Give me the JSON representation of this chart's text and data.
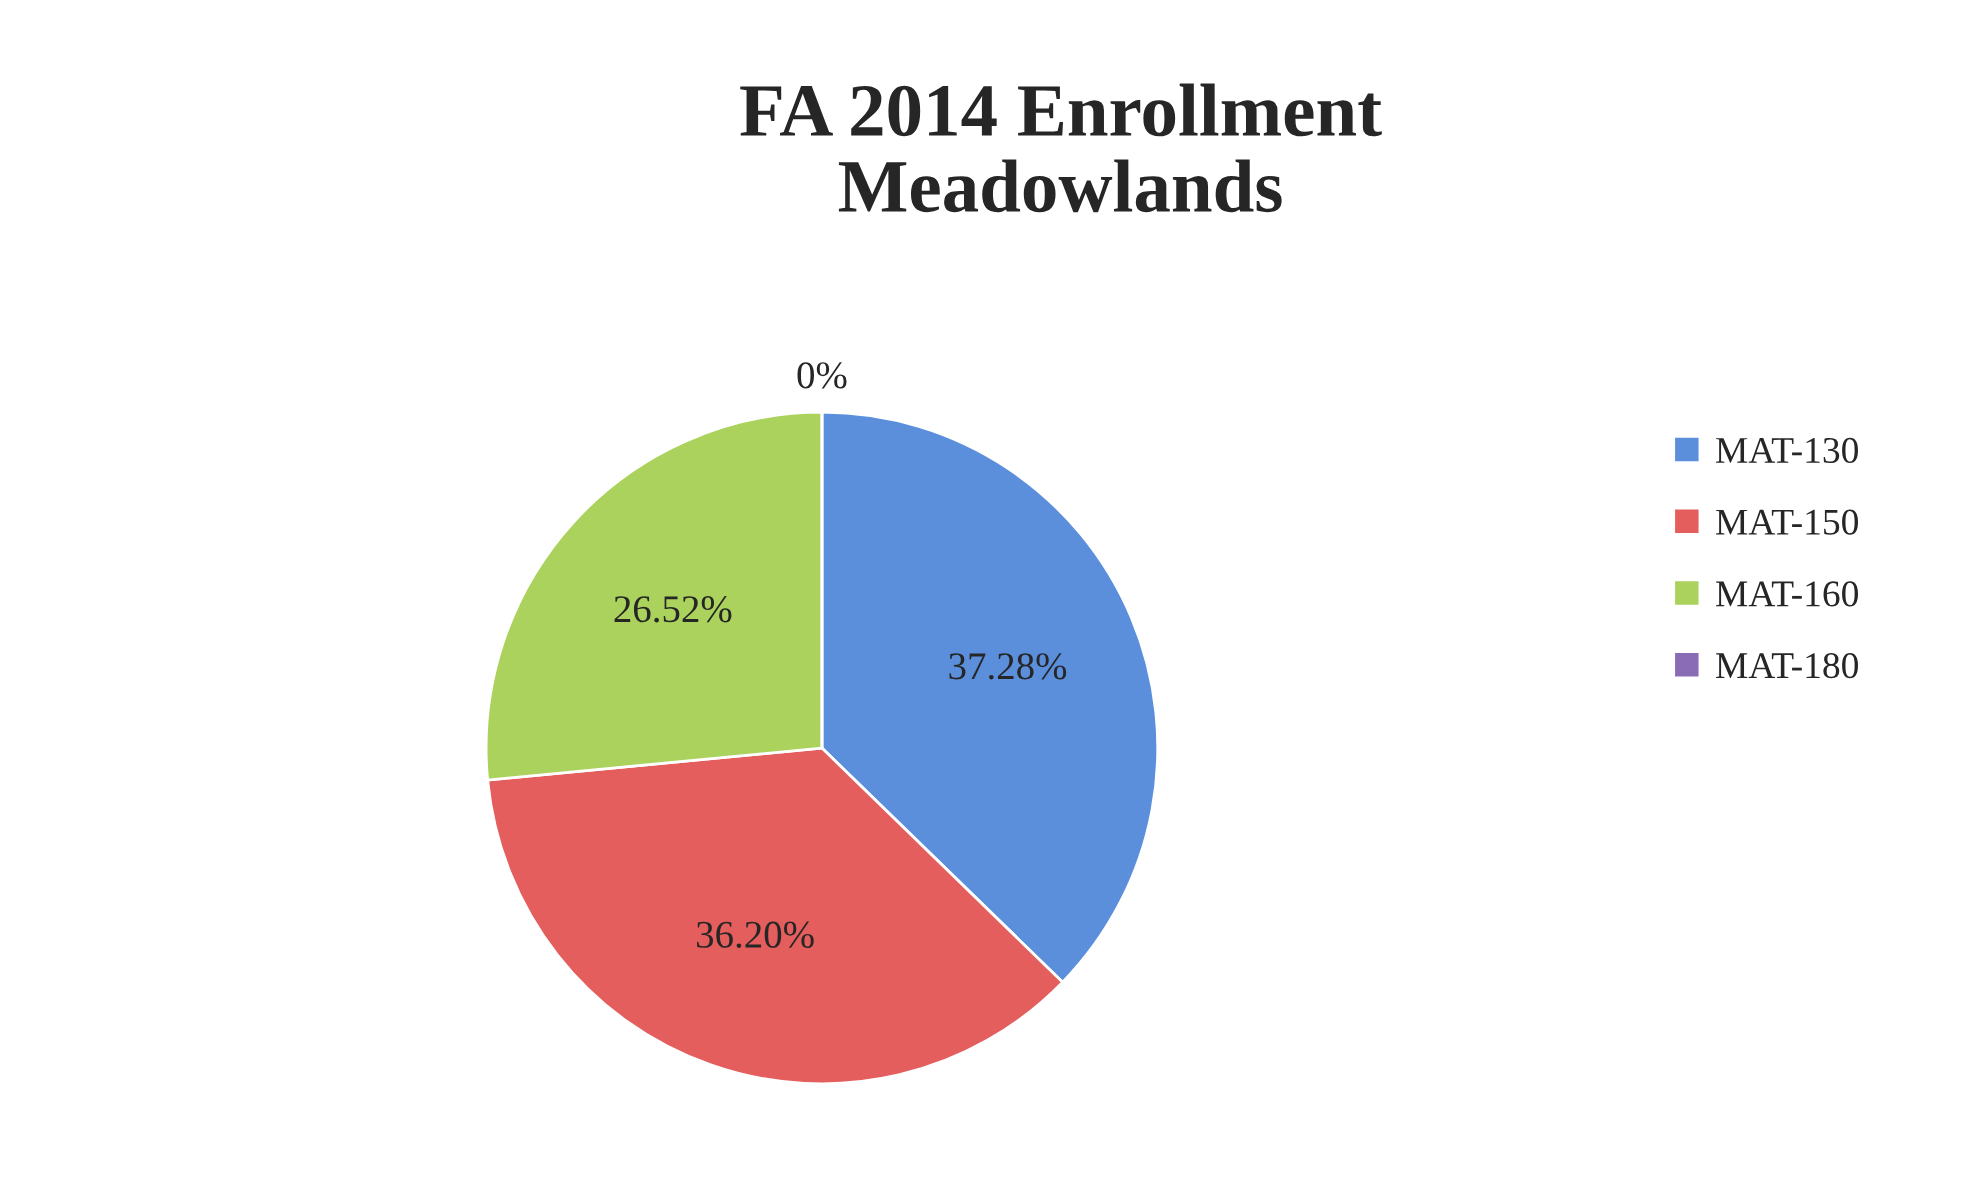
{
  "chart_data": {
    "type": "pie",
    "title": "FA 2014 Enrollment\nMeadowlands",
    "categories": [
      "MAT-130",
      "MAT-150",
      "MAT-160",
      "MAT-180"
    ],
    "values": [
      37.28,
      36.2,
      26.52,
      0
    ],
    "value_labels": [
      "37.28%",
      "36.20%",
      "26.52%",
      "0%"
    ],
    "colors": [
      "#5b8fdc",
      "#e35e5c",
      "#abd25c",
      "#8a6bb5"
    ],
    "legend": "right"
  }
}
